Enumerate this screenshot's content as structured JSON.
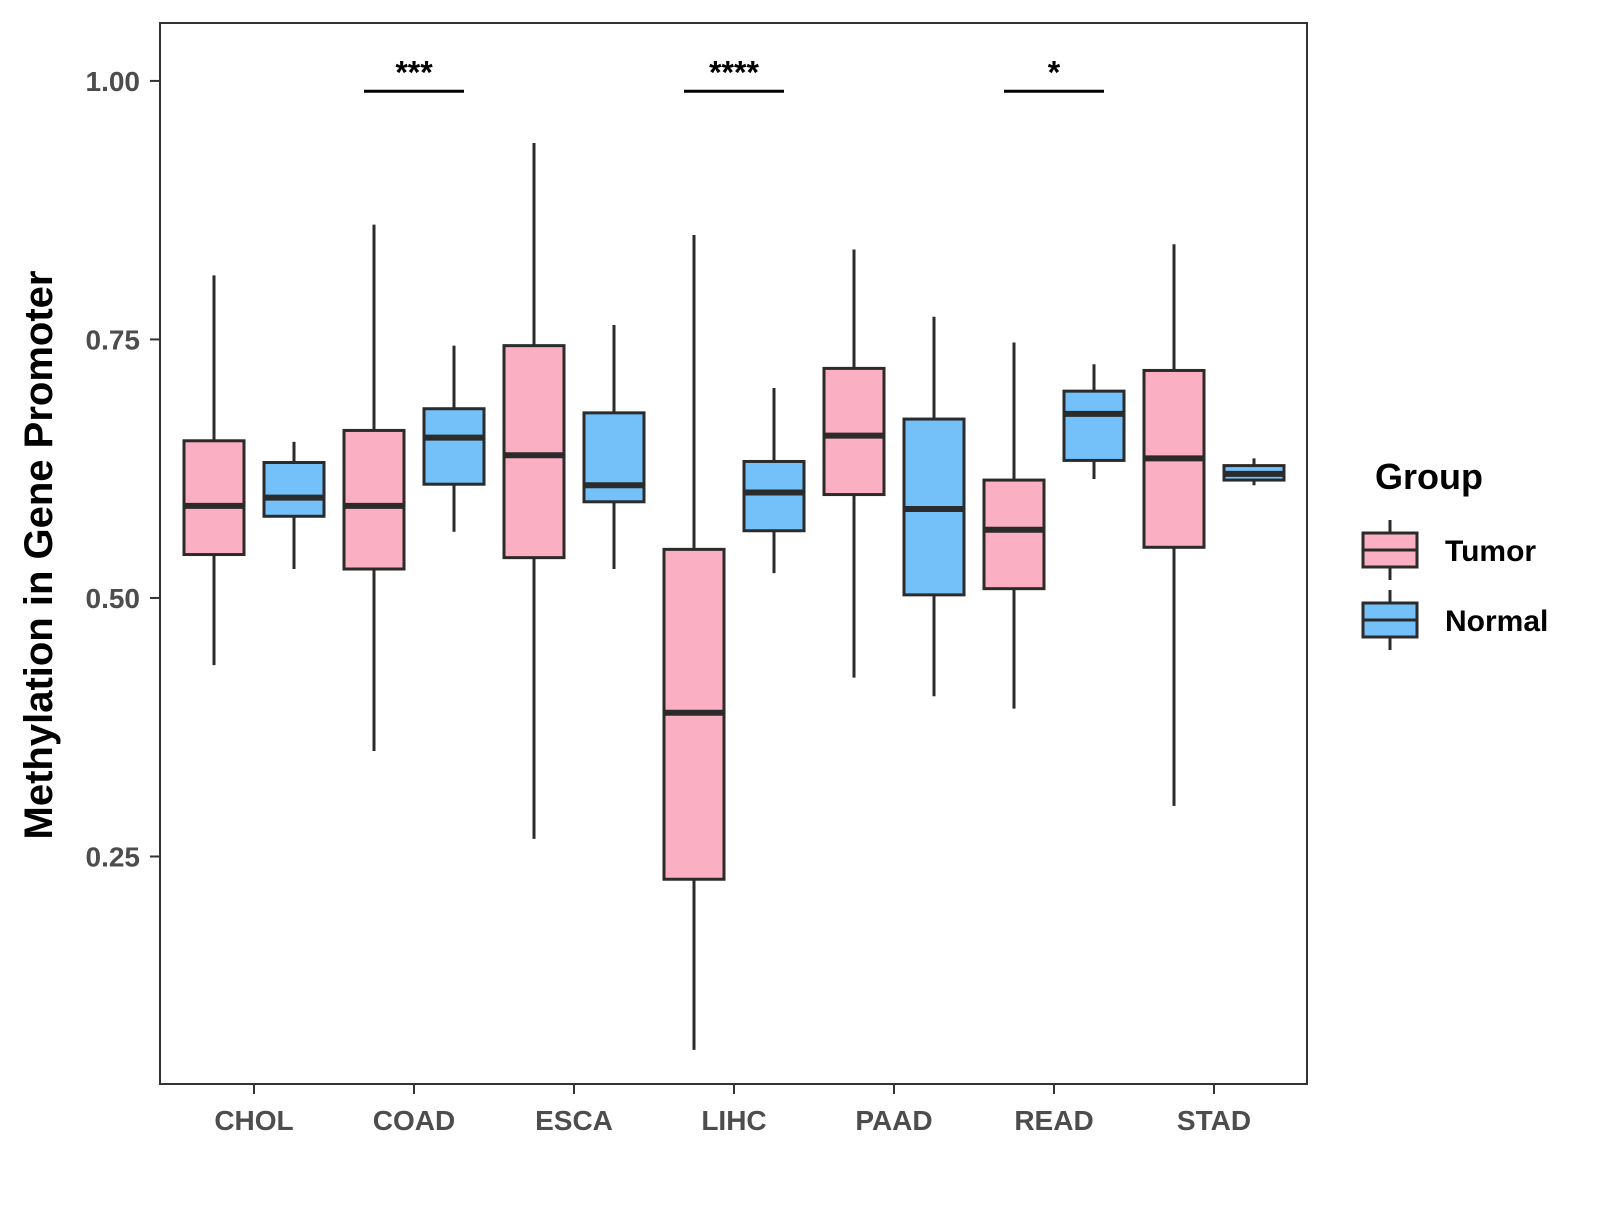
{
  "chart_data": {
    "type": "boxplot",
    "title": "",
    "xlabel": "",
    "ylabel": "Methylation in Gene Promoter",
    "ylim": [
      0.03,
      1.056
    ],
    "yticks": [
      0.25,
      0.5,
      0.75,
      1.0
    ],
    "ytick_labels": [
      "0.25",
      "0.50",
      "0.75",
      "1.00"
    ],
    "categories": [
      "CHOL",
      "COAD",
      "ESCA",
      "LIHC",
      "PAAD",
      "READ",
      "STAD"
    ],
    "grid": false,
    "legend": {
      "title": "Group",
      "position": "right",
      "entries": [
        {
          "name": "Tumor",
          "color": "#fbafc2"
        },
        {
          "name": "Normal",
          "color": "#74c1fa"
        }
      ]
    },
    "series": [
      {
        "name": "Tumor",
        "color": "#fbafc2",
        "boxes": [
          {
            "category": "CHOL",
            "min": 0.435,
            "q1": 0.542,
            "median": 0.589,
            "q3": 0.652,
            "max": 0.812
          },
          {
            "category": "COAD",
            "min": 0.352,
            "q1": 0.528,
            "median": 0.589,
            "q3": 0.662,
            "max": 0.861
          },
          {
            "category": "ESCA",
            "min": 0.267,
            "q1": 0.539,
            "median": 0.638,
            "q3": 0.744,
            "max": 0.94
          },
          {
            "category": "LIHC",
            "min": 0.063,
            "q1": 0.228,
            "median": 0.389,
            "q3": 0.547,
            "max": 0.851
          },
          {
            "category": "PAAD",
            "min": 0.423,
            "q1": 0.6,
            "median": 0.657,
            "q3": 0.722,
            "max": 0.837
          },
          {
            "category": "READ",
            "min": 0.393,
            "q1": 0.509,
            "median": 0.566,
            "q3": 0.614,
            "max": 0.747
          },
          {
            "category": "STAD",
            "min": 0.299,
            "q1": 0.549,
            "median": 0.635,
            "q3": 0.72,
            "max": 0.842
          }
        ]
      },
      {
        "name": "Normal",
        "color": "#74c1fa",
        "boxes": [
          {
            "category": "CHOL",
            "min": 0.528,
            "q1": 0.579,
            "median": 0.597,
            "q3": 0.631,
            "max": 0.651
          },
          {
            "category": "COAD",
            "min": 0.564,
            "q1": 0.61,
            "median": 0.655,
            "q3": 0.683,
            "max": 0.744
          },
          {
            "category": "ESCA",
            "min": 0.528,
            "q1": 0.593,
            "median": 0.609,
            "q3": 0.679,
            "max": 0.764
          },
          {
            "category": "LIHC",
            "min": 0.524,
            "q1": 0.565,
            "median": 0.602,
            "q3": 0.632,
            "max": 0.703
          },
          {
            "category": "PAAD",
            "min": 0.405,
            "q1": 0.503,
            "median": 0.586,
            "q3": 0.673,
            "max": 0.772
          },
          {
            "category": "READ",
            "min": 0.615,
            "q1": 0.633,
            "median": 0.678,
            "q3": 0.7,
            "max": 0.726
          },
          {
            "category": "STAD",
            "min": 0.609,
            "q1": 0.614,
            "median": 0.62,
            "q3": 0.628,
            "max": 0.635
          }
        ]
      }
    ],
    "annotations": [
      {
        "category": "COAD",
        "label": "***",
        "y": 0.99
      },
      {
        "category": "LIHC",
        "label": "****",
        "y": 0.99
      },
      {
        "category": "READ",
        "label": "*",
        "y": 0.99
      }
    ]
  }
}
